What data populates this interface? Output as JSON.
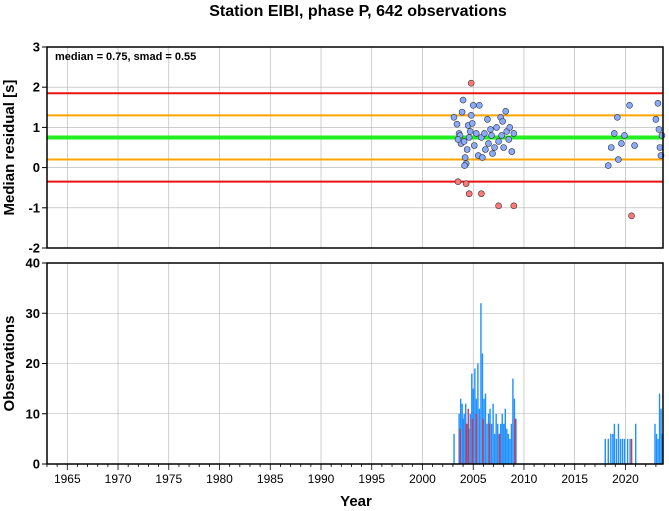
{
  "title": "Station EIBI, phase P, 642 observations",
  "chart_data": [
    {
      "type": "scatter",
      "ylabel": "Median residual [s]",
      "annotation": "median = 0.75, smad = 0.55",
      "xlim": [
        1963,
        2023.7
      ],
      "ylim": [
        -2,
        3
      ],
      "yticks": [
        "-2",
        "-1",
        "0",
        "1",
        "2",
        "3"
      ],
      "grid": true,
      "reference_lines": [
        {
          "name": "upper-red",
          "y": 1.85,
          "color": "#ee1111"
        },
        {
          "name": "upper-orange",
          "y": 1.3,
          "color": "#ffa500"
        },
        {
          "name": "median-green",
          "y": 0.75,
          "color": "#22ee22"
        },
        {
          "name": "lower-orange",
          "y": 0.2,
          "color": "#ffa500"
        },
        {
          "name": "lower-red",
          "y": -0.35,
          "color": "#ee1111"
        }
      ],
      "series": [
        {
          "color": "#88aaff",
          "points": [
            [
              2003.1,
              1.25
            ],
            [
              2003.4,
              1.08
            ],
            [
              2003.6,
              0.85
            ],
            [
              2003.7,
              0.8
            ],
            [
              2003.8,
              0.6
            ],
            [
              2003.9,
              1.38
            ],
            [
              2004.0,
              1.68
            ],
            [
              2004.1,
              0.65
            ],
            [
              2004.2,
              0.25
            ],
            [
              2004.3,
              0.1
            ],
            [
              2004.4,
              0.45
            ],
            [
              2004.5,
              1.05
            ],
            [
              2004.6,
              0.75
            ],
            [
              2004.7,
              0.9
            ],
            [
              2004.8,
              1.3
            ],
            [
              2004.9,
              1.1
            ],
            [
              2005.0,
              1.55
            ],
            [
              2005.1,
              0.55
            ],
            [
              2005.3,
              0.85
            ],
            [
              2005.5,
              0.3
            ],
            [
              2005.6,
              1.55
            ],
            [
              2005.8,
              0.75
            ],
            [
              2005.9,
              0.25
            ],
            [
              2006.1,
              0.85
            ],
            [
              2006.2,
              0.45
            ],
            [
              2006.4,
              1.2
            ],
            [
              2006.5,
              0.6
            ],
            [
              2006.7,
              0.95
            ],
            [
              2006.8,
              0.8
            ],
            [
              2006.9,
              0.35
            ],
            [
              2007.1,
              0.5
            ],
            [
              2007.3,
              1.0
            ],
            [
              2007.5,
              0.65
            ],
            [
              2007.7,
              1.25
            ],
            [
              2007.8,
              0.8
            ],
            [
              2008.0,
              0.5
            ],
            [
              2008.2,
              1.4
            ],
            [
              2008.3,
              0.9
            ],
            [
              2008.5,
              0.7
            ],
            [
              2008.6,
              1.0
            ],
            [
              2008.8,
              0.4
            ],
            [
              2009.0,
              0.85
            ],
            [
              2003.5,
              0.7
            ],
            [
              2004.15,
              0.05
            ],
            [
              2007.9,
              1.15
            ],
            [
              2018.3,
              0.05
            ],
            [
              2018.6,
              0.5
            ],
            [
              2018.9,
              0.85
            ],
            [
              2019.2,
              1.25
            ],
            [
              2019.3,
              0.2
            ],
            [
              2019.6,
              0.6
            ],
            [
              2019.9,
              0.8
            ],
            [
              2020.4,
              1.55
            ],
            [
              2020.9,
              0.55
            ],
            [
              2023.0,
              1.2
            ],
            [
              2023.2,
              1.6
            ],
            [
              2023.3,
              0.95
            ],
            [
              2023.4,
              0.5
            ],
            [
              2023.5,
              0.3
            ],
            [
              2023.6,
              0.8
            ]
          ]
        },
        {
          "color": "#ff7777",
          "points": [
            [
              2003.5,
              -0.35
            ],
            [
              2004.3,
              -0.4
            ],
            [
              2004.6,
              -0.65
            ],
            [
              2004.8,
              2.1
            ],
            [
              2005.8,
              -0.65
            ],
            [
              2007.5,
              -0.95
            ],
            [
              2009.0,
              -0.95
            ],
            [
              2020.6,
              -1.2
            ]
          ]
        }
      ]
    },
    {
      "type": "bar",
      "xlabel": "Year",
      "ylabel": "Observations",
      "xlim": [
        1963,
        2023.7
      ],
      "ylim": [
        0,
        40
      ],
      "xticks": [
        "1965",
        "1970",
        "1975",
        "1980",
        "1985",
        "1990",
        "1995",
        "2000",
        "2005",
        "2010",
        "2015",
        "2020"
      ],
      "yticks": [
        "0",
        "10",
        "20",
        "30",
        "40"
      ],
      "grid": true,
      "series": [
        {
          "color": "#1e90ff",
          "bars": [
            [
              2003.1,
              6
            ],
            [
              2003.6,
              10
            ],
            [
              2003.75,
              13
            ],
            [
              2003.9,
              12
            ],
            [
              2004.0,
              9
            ],
            [
              2004.1,
              10
            ],
            [
              2004.25,
              12
            ],
            [
              2004.4,
              8
            ],
            [
              2004.55,
              7
            ],
            [
              2004.7,
              10
            ],
            [
              2004.85,
              18
            ],
            [
              2005.0,
              15
            ],
            [
              2005.15,
              19
            ],
            [
              2005.3,
              13
            ],
            [
              2005.45,
              20
            ],
            [
              2005.6,
              11
            ],
            [
              2005.75,
              32
            ],
            [
              2005.9,
              22
            ],
            [
              2006.05,
              13
            ],
            [
              2006.2,
              14
            ],
            [
              2006.35,
              8
            ],
            [
              2006.5,
              10
            ],
            [
              2006.65,
              11
            ],
            [
              2006.8,
              8
            ],
            [
              2006.95,
              12
            ],
            [
              2007.1,
              6
            ],
            [
              2007.25,
              10
            ],
            [
              2007.4,
              8
            ],
            [
              2007.55,
              6
            ],
            [
              2007.7,
              8
            ],
            [
              2007.85,
              10
            ],
            [
              2008.0,
              8
            ],
            [
              2008.15,
              11
            ],
            [
              2008.3,
              7
            ],
            [
              2008.45,
              6
            ],
            [
              2008.6,
              5
            ],
            [
              2008.75,
              8
            ],
            [
              2008.9,
              17
            ],
            [
              2009.05,
              13
            ],
            [
              2009.2,
              9
            ],
            [
              2018.0,
              5
            ],
            [
              2018.3,
              5
            ],
            [
              2018.55,
              6
            ],
            [
              2018.75,
              6
            ],
            [
              2018.9,
              8
            ],
            [
              2019.1,
              5
            ],
            [
              2019.3,
              8
            ],
            [
              2019.5,
              5
            ],
            [
              2019.7,
              5
            ],
            [
              2019.9,
              5
            ],
            [
              2020.2,
              5
            ],
            [
              2020.45,
              5
            ],
            [
              2021.0,
              8
            ],
            [
              2022.9,
              8
            ],
            [
              2023.05,
              6
            ],
            [
              2023.2,
              5
            ],
            [
              2023.35,
              14
            ],
            [
              2023.5,
              11
            ],
            [
              2023.6,
              6
            ]
          ]
        },
        {
          "color": "#dd3344",
          "bars": [
            [
              2003.7,
              7
            ],
            [
              2004.3,
              8
            ],
            [
              2004.5,
              11
            ],
            [
              2004.9,
              9
            ],
            [
              2005.3,
              10
            ],
            [
              2005.95,
              9
            ],
            [
              2006.6,
              8
            ],
            [
              2007.6,
              6
            ],
            [
              2009.1,
              9
            ],
            [
              2020.6,
              5
            ]
          ]
        }
      ]
    }
  ]
}
